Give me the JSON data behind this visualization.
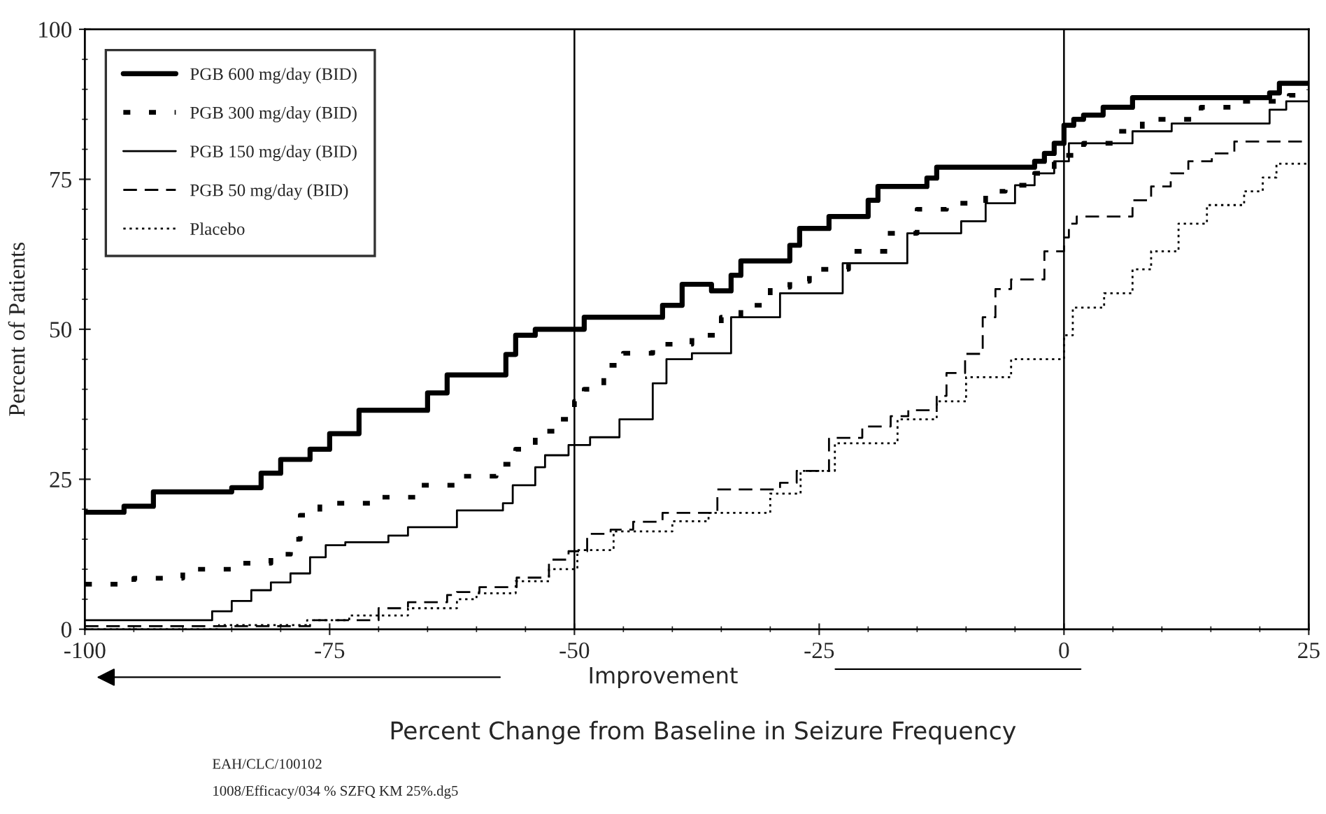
{
  "chart_data": {
    "type": "step",
    "xlabel": "Percent Change from Baseline in Seizure Frequency",
    "ylabel": "Percent of Patients",
    "annotations": [
      "Improvement",
      "EAH/CLC/100102",
      "1008/Efficacy/034 % SZFQ KM 25%.dg5"
    ],
    "xlim": [
      -100,
      25
    ],
    "xticks": [
      -100,
      -75,
      -50,
      -25,
      0,
      25
    ],
    "ylim": [
      0,
      100
    ],
    "yticks": [
      0,
      25,
      50,
      75,
      100
    ],
    "grid": false,
    "legend": "top left",
    "ref_lines": [
      {
        "axis": "x",
        "value": -50,
        "color": "#000000"
      },
      {
        "axis": "x",
        "value": 0,
        "color": "#000000"
      }
    ],
    "series": [
      {
        "name": "PGB 600 mg/day (BID)",
        "color": "#000000",
        "line_style": "solid",
        "x": [
          -100,
          -98,
          -96,
          -93,
          -85,
          -82,
          -80,
          -77,
          -75,
          -72,
          -65,
          -63,
          -57,
          -56,
          -54,
          -53,
          -49,
          -41,
          -39,
          -36,
          -34,
          -33,
          -28,
          -27,
          -24,
          -20,
          -19,
          -14,
          -13,
          -3,
          -2,
          -1,
          0,
          1,
          2,
          4,
          7,
          21,
          22,
          25
        ],
        "values": [
          19.5,
          19.5,
          20.5,
          22.9,
          23.6,
          26,
          28.3,
          30,
          32.6,
          36.5,
          39.4,
          42.4,
          45.8,
          49,
          50,
          50,
          52,
          54,
          57.5,
          56.4,
          59,
          61.4,
          64,
          66.8,
          68.8,
          71.5,
          73.8,
          75.2,
          77,
          78,
          79.3,
          81,
          84,
          85,
          85.7,
          87,
          88.6,
          89.4,
          91,
          91
        ]
      },
      {
        "name": "PGB 300 mg/day (BID)",
        "color": "#000000",
        "line_style": "dotted",
        "x": [
          -100,
          -95,
          -90,
          -85,
          -81,
          -79,
          -78,
          -76,
          -70,
          -66,
          -62,
          -58,
          -56,
          -54,
          -52,
          -50,
          -49,
          -47,
          -45,
          -42,
          -38,
          -35,
          -33,
          -30,
          -28,
          -26,
          -22,
          -18,
          -15,
          -12,
          -8,
          -6,
          -3,
          -1,
          0,
          2,
          5,
          8,
          14,
          18,
          23,
          25
        ],
        "values": [
          7.5,
          8.5,
          10,
          11,
          12.5,
          15,
          19,
          21,
          22,
          24,
          25.5,
          27.5,
          30,
          33,
          35,
          38,
          40,
          44,
          46,
          47.5,
          49,
          52,
          54,
          57,
          58,
          60,
          63,
          66,
          70,
          71,
          73,
          74,
          76,
          78,
          79,
          81,
          83,
          85,
          87,
          88,
          89,
          90
        ]
      },
      {
        "name": "PGB 150 mg/day (BID)",
        "color": "#000000",
        "line_style": "solid",
        "x": [
          -100,
          -87,
          -85,
          -83,
          -81,
          -79,
          -77,
          -75.4,
          -73.4,
          -69,
          -67,
          -62,
          -57.3,
          -56.3,
          -54,
          -53,
          -50.6,
          -48.4,
          -45.4,
          -42,
          -40.6,
          -38,
          -34,
          -29,
          -22.6,
          -16,
          -10.5,
          -8,
          -5,
          -3,
          -1,
          0.5,
          7,
          11,
          21,
          22.7,
          25
        ],
        "values": [
          1.5,
          3,
          4.7,
          6.5,
          7.8,
          9.3,
          12,
          14,
          14.5,
          15.6,
          17,
          19.8,
          21,
          24,
          27,
          29,
          30.7,
          32,
          35,
          41,
          45,
          46,
          52,
          56,
          61,
          66,
          68,
          71,
          74,
          76,
          78,
          81,
          83,
          84.3,
          86.6,
          88,
          89
        ]
      },
      {
        "name": "PGB 50 mg/day (BID)",
        "color": "#000000",
        "line_style": "dashed",
        "x": [
          -100,
          -77,
          -70,
          -67,
          -63,
          -62,
          -59.7,
          -55.9,
          -52.6,
          -50.6,
          -48.7,
          -46.3,
          -44,
          -41,
          -35.4,
          -29,
          -27.3,
          -24,
          -20.6,
          -17.7,
          -15.9,
          -13,
          -12,
          -10.1,
          -8.3,
          -7,
          -5.4,
          -2,
          0,
          0.5,
          1.3,
          7,
          8.9,
          10.9,
          12.7,
          15.1,
          17.4,
          25
        ],
        "values": [
          0.5,
          1.5,
          3.5,
          4.5,
          5.7,
          6.2,
          7,
          8.6,
          11.6,
          13,
          15.9,
          16.6,
          17.9,
          19.4,
          23.3,
          24.4,
          26.4,
          31.9,
          33.8,
          35.5,
          36.5,
          38.9,
          42.7,
          45.9,
          52,
          56.7,
          58.3,
          63,
          65.3,
          67.6,
          68.8,
          71.5,
          73.8,
          76,
          78,
          79.3,
          81.3,
          81.3
        ]
      },
      {
        "name": "Placebo",
        "color": "#000000",
        "line_style": "dotted",
        "x": [
          -100,
          -86.3,
          -77.3,
          -73,
          -67,
          -62,
          -60,
          -56,
          -52.6,
          -49.7,
          -46,
          -40,
          -36.3,
          -30,
          -26.9,
          -23.4,
          -17,
          -13,
          -10,
          -5.4,
          0,
          0.9,
          4.1,
          7,
          8.9,
          11.7,
          14.6,
          18.4,
          20.3,
          21.7,
          25
        ],
        "values": [
          0,
          0.7,
          1.5,
          2.3,
          3.5,
          5,
          6,
          8,
          10,
          13.2,
          16.3,
          18,
          19.4,
          22.6,
          26.4,
          31,
          35,
          38,
          42,
          45,
          49,
          53.6,
          56,
          60,
          63,
          67.6,
          70.7,
          73,
          75.3,
          77.6,
          78.5
        ]
      }
    ]
  }
}
